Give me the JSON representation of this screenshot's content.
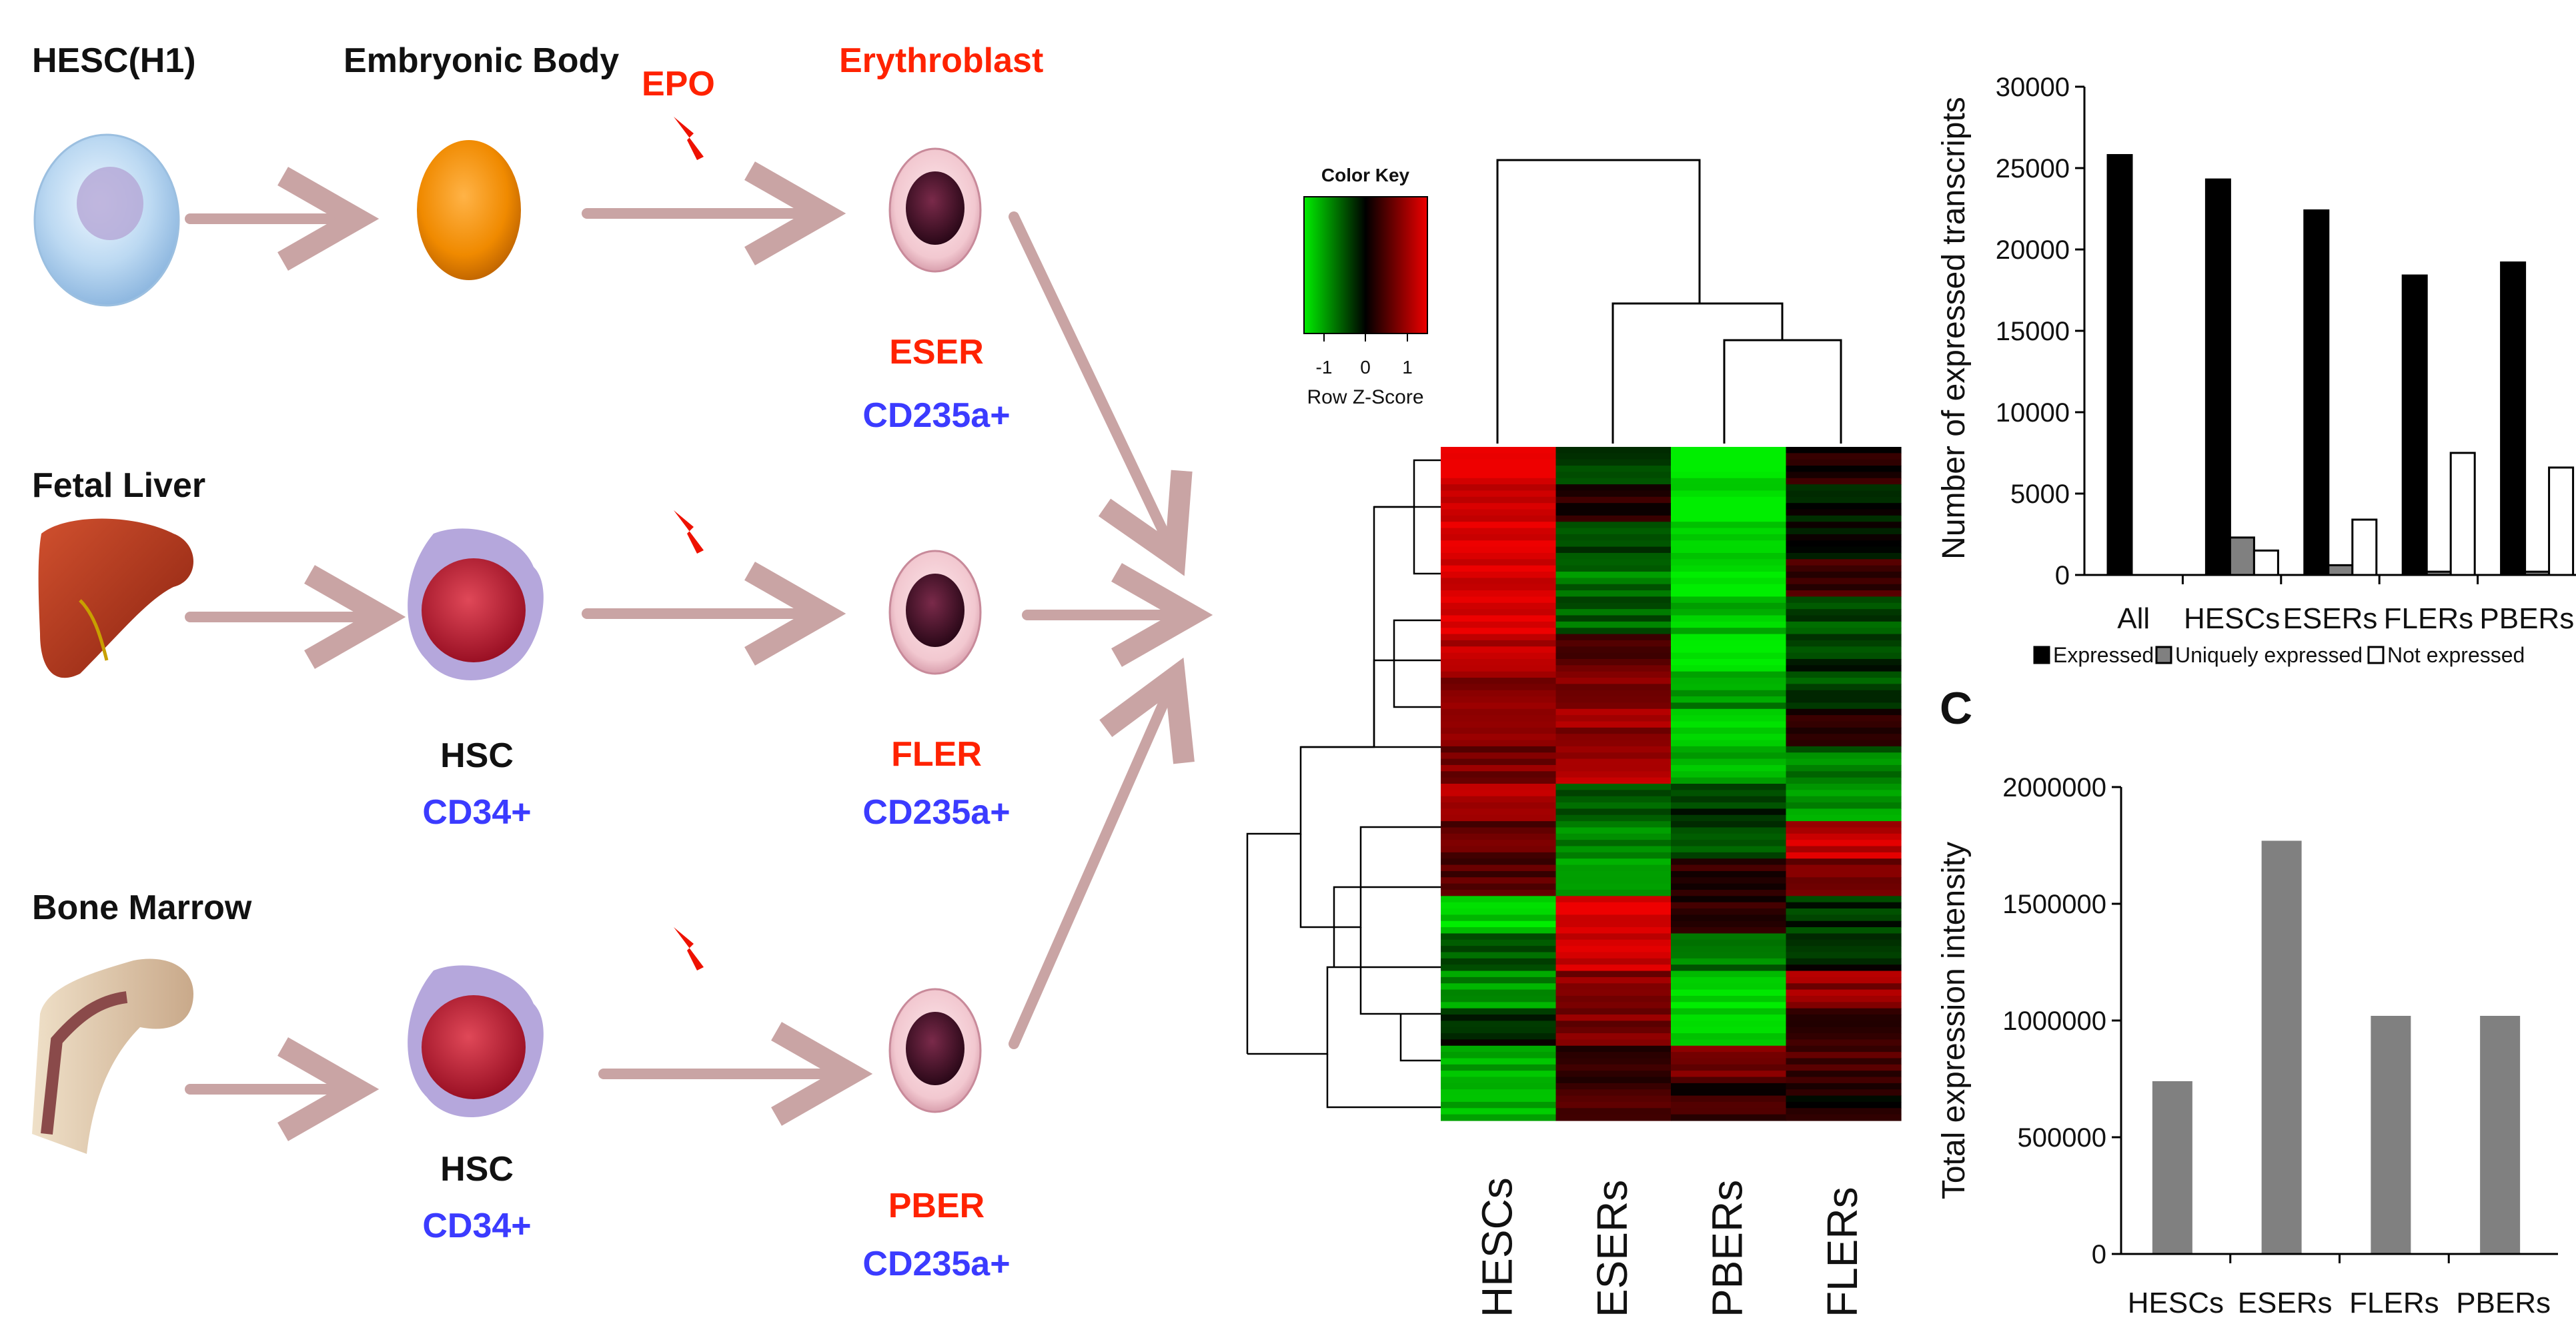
{
  "workflow": {
    "stage_labels": {
      "hesc": "HESC(H1)",
      "embryonic_body": "Embryonic Body",
      "epo": "EPO",
      "erythroblast": "Erythroblast"
    },
    "rows": [
      {
        "source": "HESC(H1)",
        "intermediate": "",
        "intermediate_marker": "",
        "erythroblast": "ESER",
        "marker": "CD235a+"
      },
      {
        "source": "Fetal Liver",
        "intermediate": "HSC",
        "intermediate_marker": "CD34+",
        "erythroblast": "FLER",
        "marker": "CD235a+"
      },
      {
        "source": "Bone Marrow",
        "intermediate": "HSC",
        "intermediate_marker": "CD34+",
        "erythroblast": "PBER",
        "marker": "CD235a+"
      }
    ],
    "colors": {
      "arrow": "#c9a4a4",
      "red_label": "#ff2200",
      "blue_label": "#3b3bff",
      "bolt": "#ee1100"
    }
  },
  "heatmap": {
    "color_key_title": "Color Key",
    "color_key_ticks": [
      "-1",
      "0",
      "1"
    ],
    "color_key_label": "Row Z-Score",
    "columns": [
      "HESCs",
      "ESERs",
      "PBERs",
      "FLERs"
    ],
    "colors": {
      "low": "#00ee00",
      "mid": "#000000",
      "high": "#ee0000"
    },
    "row_blocks": [
      [
        1.0,
        -0.2,
        -1.0,
        0.1
      ],
      [
        0.9,
        0.1,
        -1.0,
        -0.1
      ],
      [
        1.0,
        -0.3,
        -0.9,
        0.0
      ],
      [
        0.9,
        -0.5,
        -1.0,
        0.2
      ],
      [
        1.0,
        -0.4,
        -0.8,
        -0.3
      ],
      [
        0.8,
        0.4,
        -0.9,
        -0.2
      ],
      [
        0.6,
        0.5,
        -0.6,
        -0.3
      ],
      [
        0.6,
        0.6,
        -1.0,
        0.1
      ],
      [
        0.5,
        0.7,
        -0.7,
        -0.5
      ],
      [
        0.7,
        -0.3,
        -0.2,
        -0.6
      ],
      [
        0.4,
        -0.6,
        -0.3,
        0.8
      ],
      [
        0.3,
        -0.7,
        0.2,
        0.5
      ],
      [
        -0.9,
        0.9,
        0.2,
        -0.2
      ],
      [
        -0.3,
        0.9,
        -0.5,
        -0.1
      ],
      [
        -0.6,
        0.6,
        -0.9,
        0.6
      ],
      [
        -0.1,
        0.5,
        -0.8,
        0.2
      ],
      [
        -0.7,
        0.2,
        0.5,
        0.3
      ],
      [
        -0.8,
        0.3,
        0.2,
        0.1
      ]
    ]
  },
  "chart_data": [
    {
      "type": "bar",
      "title": "",
      "xlabel": "",
      "ylabel": "Number of expressed transcripts",
      "categories": [
        "All",
        "HESCs",
        "ESERs",
        "FLERs",
        "PBERs"
      ],
      "series": [
        {
          "name": "Expressed",
          "values": [
            25800,
            24300,
            22400,
            18400,
            19200
          ],
          "color": "#000000"
        },
        {
          "name": "Uniquely expressed",
          "values": [
            0,
            2300,
            600,
            200,
            200
          ],
          "color": "#808080"
        },
        {
          "name": "Not expressed",
          "values": [
            0,
            1500,
            3400,
            7500,
            6600
          ],
          "color": "#ffffff"
        }
      ],
      "ylim": [
        0,
        30000
      ],
      "yticks": [
        0,
        5000,
        10000,
        15000,
        20000,
        25000,
        30000
      ],
      "legend_position": "bottom"
    },
    {
      "type": "bar",
      "panel_label": "C",
      "title": "",
      "xlabel": "",
      "ylabel": "Total expression intensity",
      "categories": [
        "HESCs",
        "ESERs",
        "FLERs",
        "PBERs"
      ],
      "values": [
        740000,
        1770000,
        1020000,
        1020000
      ],
      "color": "#808080",
      "ylim": [
        0,
        2000000
      ],
      "yticks": [
        0,
        500000,
        1000000,
        1500000,
        2000000
      ]
    }
  ]
}
